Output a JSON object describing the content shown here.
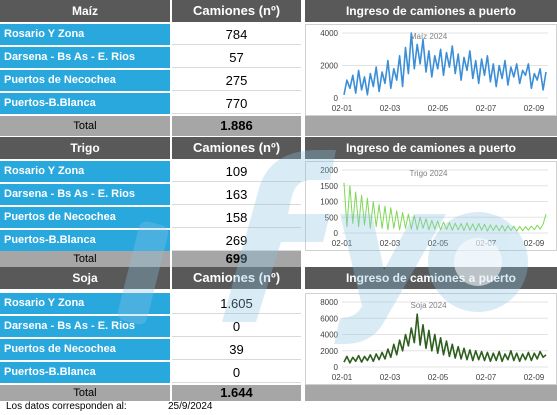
{
  "colors": {
    "header_bg": "#595959",
    "label_bg": "#29A8DE",
    "total_bg": "#A6A6A6",
    "maiz_line": "#3C8FD6",
    "trigo_line": "#7ED957",
    "soja_line": "#2E5E1E"
  },
  "chart_title": "Ingreso de camiones a puerto",
  "sections": [
    {
      "id": "maiz",
      "crop": "Maíz",
      "column_header": "Camiones (nº)",
      "rows": [
        {
          "label": "Rosario Y Zona",
          "value": "784"
        },
        {
          "label": "Darsena - Bs As - E. Rios",
          "value": "57"
        },
        {
          "label": "Puertos de Necochea",
          "value": "275"
        },
        {
          "label": "Puertos-B.Blanca",
          "value": "770"
        }
      ],
      "total_label": "Total",
      "total_value": "1.886"
    },
    {
      "id": "trigo",
      "crop": "Trigo",
      "column_header": "Camiones (nº)",
      "rows": [
        {
          "label": "Rosario Y Zona",
          "value": "109"
        },
        {
          "label": "Darsena - Bs As - E. Rios",
          "value": "163"
        },
        {
          "label": "Puertos de Necochea",
          "value": "158"
        },
        {
          "label": "Puertos-B.Blanca",
          "value": "269"
        }
      ],
      "total_label": "Total",
      "total_value": "699"
    },
    {
      "id": "soja",
      "crop": "Soja",
      "column_header": "Camiones (nº)",
      "rows": [
        {
          "label": "Rosario Y Zona",
          "value": "1.605"
        },
        {
          "label": "Darsena - Bs As - E. Rios",
          "value": "0"
        },
        {
          "label": "Puertos de Necochea",
          "value": "39"
        },
        {
          "label": "Puertos-B.Blanca",
          "value": "0"
        }
      ],
      "total_label": "Total",
      "total_value": "1.644"
    }
  ],
  "footer": {
    "note": "Los datos corresponden al:",
    "date": "25/9/2024"
  },
  "chart_data": [
    {
      "type": "line",
      "title": "Maíz 2024",
      "x_ticks": [
        "02-01",
        "02-03",
        "02-05",
        "02-07",
        "02-09"
      ],
      "ylim": [
        0,
        4000
      ],
      "y_ticks": [
        0,
        2000,
        4000
      ],
      "series": [
        {
          "values": [
            200,
            1100,
            600,
            1400,
            300,
            1700,
            500,
            1300,
            200,
            1500,
            700,
            1900,
            400,
            1600,
            900,
            2300,
            600,
            1800,
            1100,
            2600,
            700,
            3100,
            1500,
            4000,
            1800,
            3300,
            2100,
            3600,
            1600,
            2900,
            1300,
            2600,
            1800,
            3000,
            1400,
            2800,
            1900,
            3200,
            1500,
            2700,
            1100,
            2500,
            1700,
            2900,
            1200,
            2300,
            900,
            2400,
            1400,
            2600,
            1000,
            2100,
            700,
            2000,
            1200,
            2300,
            800,
            1900,
            1300,
            2100,
            900,
            1700,
            1400,
            2100,
            600,
            1500,
            1100,
            1800,
            500,
            1600
          ]
        }
      ]
    },
    {
      "type": "line",
      "title": "Trigo 2024",
      "x_ticks": [
        "02-01",
        "02-03",
        "02-05",
        "02-07",
        "02-09"
      ],
      "ylim": [
        0,
        2000
      ],
      "y_ticks": [
        0,
        500,
        1000,
        1500,
        2000
      ],
      "series": [
        {
          "values": [
            1600,
            200,
            1500,
            300,
            1300,
            200,
            1200,
            250,
            1100,
            150,
            1000,
            200,
            900,
            150,
            850,
            100,
            800,
            150,
            700,
            100,
            650,
            150,
            600,
            120,
            550,
            100,
            500,
            150,
            450,
            100,
            400,
            120,
            380,
            100,
            350,
            110,
            330,
            90,
            310,
            100,
            300,
            80,
            320,
            90,
            290,
            70,
            300,
            90,
            280,
            60,
            260,
            80,
            250,
            70,
            240,
            60,
            230,
            80,
            220,
            60,
            210,
            70,
            200,
            90,
            220,
            100,
            250,
            120,
            280,
            600
          ]
        }
      ]
    },
    {
      "type": "line",
      "title": "Soja 2024",
      "x_ticks": [
        "02-01",
        "02-03",
        "02-05",
        "02-07",
        "02-09"
      ],
      "ylim": [
        0,
        8000
      ],
      "y_ticks": [
        0,
        2000,
        4000,
        6000,
        8000
      ],
      "series": [
        {
          "values": [
            600,
            1300,
            500,
            1200,
            700,
            1400,
            600,
            1300,
            800,
            1500,
            700,
            1600,
            900,
            1800,
            1000,
            2200,
            1200,
            2800,
            1500,
            3300,
            2000,
            4000,
            2600,
            4800,
            3000,
            6500,
            2700,
            5200,
            2300,
            4500,
            2000,
            4000,
            1700,
            3600,
            1500,
            3200,
            1300,
            2800,
            1100,
            2500,
            1000,
            2300,
            900,
            2100,
            800,
            2000,
            900,
            1900,
            800,
            1800,
            700,
            1700,
            800,
            1900,
            700,
            1600,
            900,
            2000,
            800,
            1700,
            700,
            1600,
            900,
            1800,
            800,
            1700,
            1000,
            1900,
            1200,
            1500
          ]
        }
      ]
    }
  ]
}
